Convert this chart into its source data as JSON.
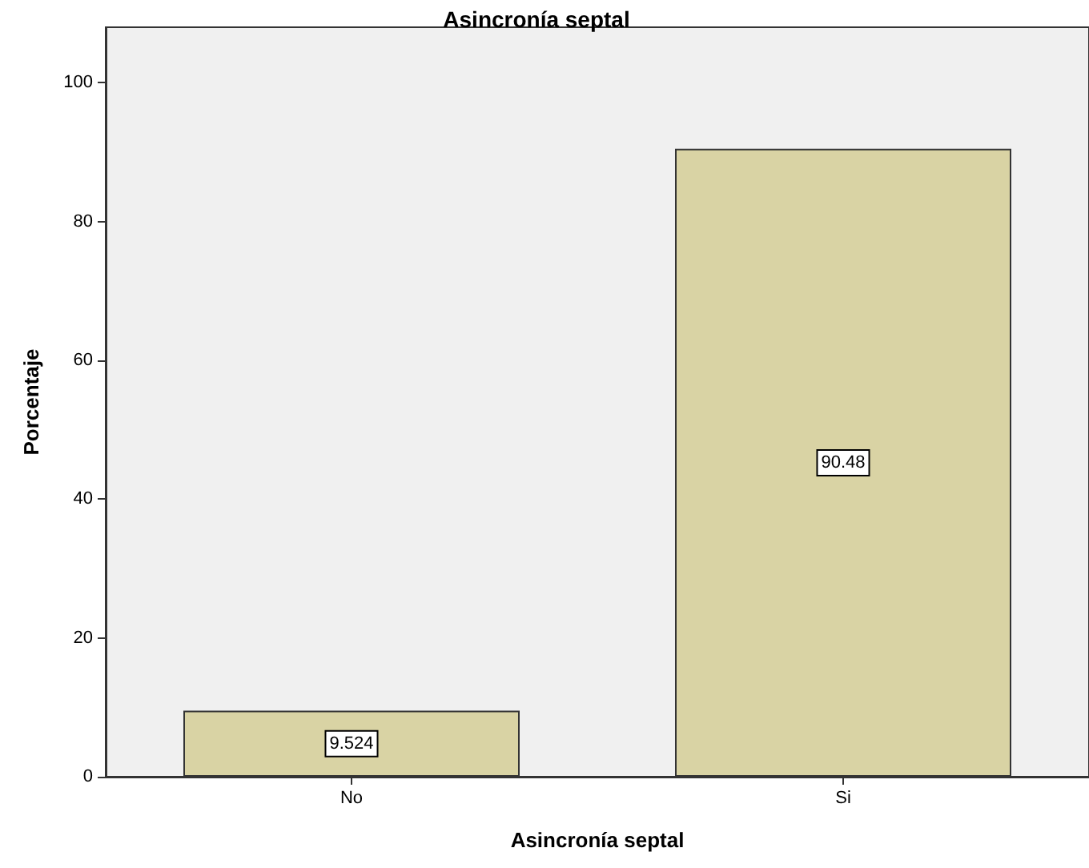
{
  "chart_data": {
    "type": "bar",
    "title": "Asincronía septal",
    "xlabel": "Asincronía septal",
    "ylabel": "Porcentaje",
    "categories": [
      "No",
      "Si"
    ],
    "values": [
      9.524,
      90.48
    ],
    "color": "#d9d3a4",
    "ylim": [
      0,
      108
    ],
    "yticks": [
      0,
      20,
      40,
      60,
      80,
      100
    ],
    "grid": false,
    "data_labels": true
  }
}
